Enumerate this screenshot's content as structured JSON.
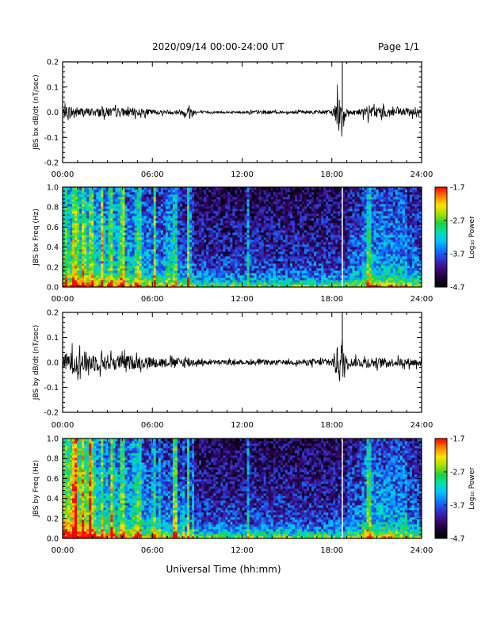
{
  "header": {
    "title": "2020/09/14  00:00-24:00 UT",
    "page": "Page 1/1"
  },
  "xaxis": {
    "label": "Universal Time (hh:mm)",
    "ticks": [
      "00:00",
      "06:00",
      "12:00",
      "18:00",
      "24:00"
    ]
  },
  "colors": {
    "trace": "#000000",
    "colormap": [
      "#000000",
      "#1a0030",
      "#3a0a7a",
      "#3030c8",
      "#1070ff",
      "#00c0ff",
      "#00e0b0",
      "#20d040",
      "#a0e000",
      "#ffe000",
      "#ff8000",
      "#ff0000"
    ]
  },
  "chart_data": [
    {
      "type": "line",
      "ylabel": "JBS bx dB/dt (nT/sec)",
      "x_range_hours": [
        0,
        24
      ],
      "ylim": [
        -0.2,
        0.2
      ],
      "yticks": [
        "-0.2",
        "-0.1",
        "0.0",
        "0.1",
        "0.2"
      ],
      "series": [
        {
          "x": [
            0,
            0.5,
            1,
            2,
            3,
            4,
            5,
            6,
            7,
            8,
            8.4,
            9,
            10,
            11,
            12,
            13,
            14,
            15,
            16,
            17,
            18,
            18.7,
            19,
            20,
            20.5,
            21,
            22,
            23,
            24
          ],
          "y": [
            0.03,
            0.05,
            0.04,
            0.03,
            0.035,
            0.03,
            0.03,
            0.02,
            0.015,
            0.02,
            0.05,
            0.01,
            0.008,
            0.008,
            0.01,
            0.015,
            0.012,
            0.01,
            0.012,
            0.015,
            0.015,
            0.2,
            0.02,
            0.025,
            0.05,
            0.04,
            0.035,
            0.03,
            0.025
          ]
        }
      ]
    },
    {
      "type": "heatmap",
      "ylabel": "JBS bx Freq (Hz)",
      "x_range_hours": [
        0,
        24
      ],
      "ylim": [
        0.0,
        1.0
      ],
      "yticks": [
        "0.0",
        "0.2",
        "0.4",
        "0.6",
        "0.8",
        "1.0"
      ],
      "colorbar": {
        "label": "Log₁₀ Power",
        "range": [
          -4.7,
          -1.7
        ],
        "ticks": [
          "-1.7",
          "-2.7",
          "-3.7",
          "-4.7"
        ]
      }
    },
    {
      "type": "line",
      "ylabel": "JBS by dB/dt (nT/sec)",
      "x_range_hours": [
        0,
        24
      ],
      "ylim": [
        -0.2,
        0.2
      ],
      "yticks": [
        "-0.2",
        "-0.1",
        "0.0",
        "0.1",
        "0.2"
      ],
      "series": [
        {
          "x": [
            0,
            0.5,
            1,
            2,
            3,
            4,
            5,
            6,
            7,
            8,
            8.4,
            9,
            10,
            11,
            12,
            13,
            14,
            15,
            16,
            17,
            18,
            18.7,
            19,
            20,
            20.5,
            21,
            22,
            23,
            24
          ],
          "y": [
            0.06,
            0.08,
            0.09,
            0.07,
            0.06,
            0.055,
            0.05,
            0.04,
            0.03,
            0.035,
            0.045,
            0.02,
            0.018,
            0.016,
            0.015,
            0.02,
            0.018,
            0.016,
            0.02,
            0.025,
            0.03,
            0.2,
            0.03,
            0.035,
            0.04,
            0.035,
            0.03,
            0.03,
            0.03
          ]
        }
      ]
    },
    {
      "type": "heatmap",
      "ylabel": "JBS by Freq (Hz)",
      "x_range_hours": [
        0,
        24
      ],
      "ylim": [
        0.0,
        1.0
      ],
      "yticks": [
        "0.0",
        "0.2",
        "0.4",
        "0.6",
        "0.8",
        "1.0"
      ],
      "colorbar": {
        "label": "Log₁₀ Power",
        "range": [
          -4.7,
          -1.7
        ],
        "ticks": [
          "-1.7",
          "-2.7",
          "-3.7",
          "-4.7"
        ]
      }
    }
  ]
}
